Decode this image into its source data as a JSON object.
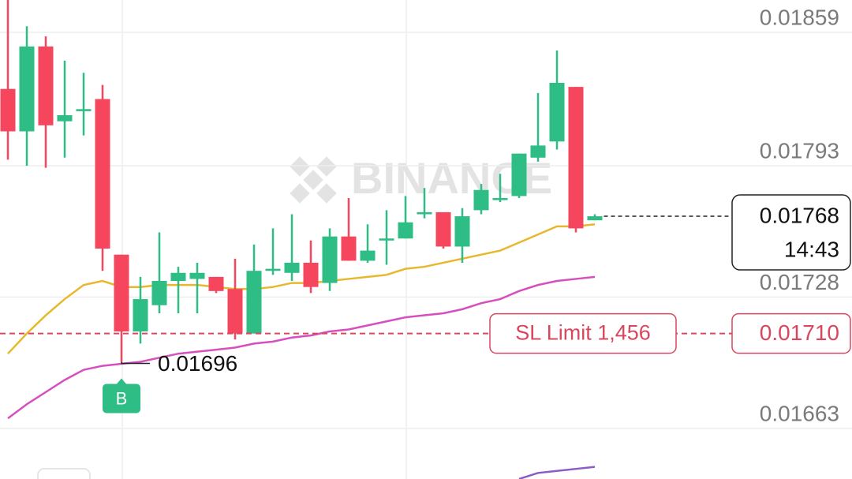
{
  "chart_data": {
    "type": "candlestick",
    "watermark": "BINANCE",
    "open": [
      0.01831,
      0.0181,
      0.01852,
      0.01815,
      0.0182,
      0.01826,
      0.01749,
      0.01711,
      0.01724,
      0.01736,
      0.01737,
      0.01738,
      0.01732,
      0.0171,
      0.01741,
      0.0174,
      0.01745,
      0.01735,
      0.01758,
      0.01746,
      0.01756,
      0.01757,
      0.01769,
      0.0177,
      0.01753,
      0.01771,
      0.01776,
      0.01778,
      0.01797,
      0.01805,
      0.01832,
      0.01766
    ],
    "high": [
      0.01875,
      0.01862,
      0.01857,
      0.01845,
      0.01839,
      0.01833,
      0.01749,
      0.01738,
      0.0176,
      0.01743,
      0.01745,
      0.01738,
      0.01747,
      0.01754,
      0.01762,
      0.01769,
      0.01756,
      0.01762,
      0.01777,
      0.01764,
      0.01771,
      0.01778,
      0.01782,
      0.0177,
      0.01772,
      0.01784,
      0.01789,
      0.01799,
      0.01829,
      0.0185,
      0.01832,
      0.01769
    ],
    "low": [
      0.01796,
      0.01793,
      0.01792,
      0.01797,
      0.01808,
      0.01741,
      0.01696,
      0.01705,
      0.0172,
      0.0172,
      0.0172,
      0.0173,
      0.01707,
      0.0171,
      0.01739,
      0.01736,
      0.0173,
      0.01731,
      0.01746,
      0.01745,
      0.01744,
      0.01757,
      0.01767,
      0.01752,
      0.01745,
      0.01769,
      0.01775,
      0.01777,
      0.01795,
      0.01801,
      0.0176,
      0.01766
    ],
    "close": [
      0.0181,
      0.01852,
      0.01813,
      0.01818,
      0.01821,
      0.01752,
      0.01711,
      0.01727,
      0.01736,
      0.0174,
      0.0174,
      0.01731,
      0.0171,
      0.01741,
      0.01742,
      0.01745,
      0.01733,
      0.01758,
      0.01746,
      0.01751,
      0.01757,
      0.01765,
      0.0177,
      0.01753,
      0.01768,
      0.01781,
      0.01777,
      0.01799,
      0.01803,
      0.01834,
      0.01762,
      0.01768
    ],
    "up_color": "#2ebd85",
    "down_color": "#f6465d",
    "moving_averages": [
      {
        "color": "#e8b82c",
        "values": [
          0.017,
          0.0171,
          0.01719,
          0.01727,
          0.01734,
          0.01736,
          0.01733,
          0.01733,
          0.01734,
          0.01734,
          0.01734,
          0.01733,
          0.01732,
          0.01732,
          0.01733,
          0.01735,
          0.01735,
          0.01736,
          0.01737,
          0.01738,
          0.01739,
          0.01742,
          0.01743,
          0.01745,
          0.01747,
          0.01749,
          0.01751,
          0.01755,
          0.01759,
          0.01763,
          0.01763,
          0.01764
        ]
      },
      {
        "color": "#d64fbf",
        "values": [
          0.01668,
          0.01675,
          0.01681,
          0.01687,
          0.01692,
          0.01694,
          0.01695,
          0.01696,
          0.01698,
          0.017,
          0.01701,
          0.01702,
          0.01703,
          0.01705,
          0.01706,
          0.01708,
          0.01709,
          0.01711,
          0.01712,
          0.01714,
          0.01716,
          0.01718,
          0.01719,
          0.0172,
          0.01722,
          0.01725,
          0.01727,
          0.01731,
          0.01734,
          0.01736,
          0.01737,
          0.01738
        ]
      },
      {
        "color": "#8b5cc8",
        "values": [
          null,
          null,
          null,
          null,
          null,
          null,
          null,
          null,
          null,
          null,
          null,
          null,
          null,
          null,
          null,
          null,
          null,
          null,
          null,
          null,
          null,
          null,
          null,
          null,
          null,
          null,
          null,
          0.01638,
          0.01641,
          0.01642,
          0.01643,
          0.01644
        ]
      }
    ],
    "ylim": [
      0.01638,
      0.01875
    ],
    "yticks": [
      0.01859,
      0.01793,
      0.01728,
      0.01663
    ],
    "grid": true,
    "countdown": "14:43",
    "order_line": {
      "label": "SL Limit 1,456",
      "price": {
        "value": 0.0171,
        "label": "0.01710"
      },
      "color": "#d9475e"
    },
    "trade_marker": "B"
  }
}
